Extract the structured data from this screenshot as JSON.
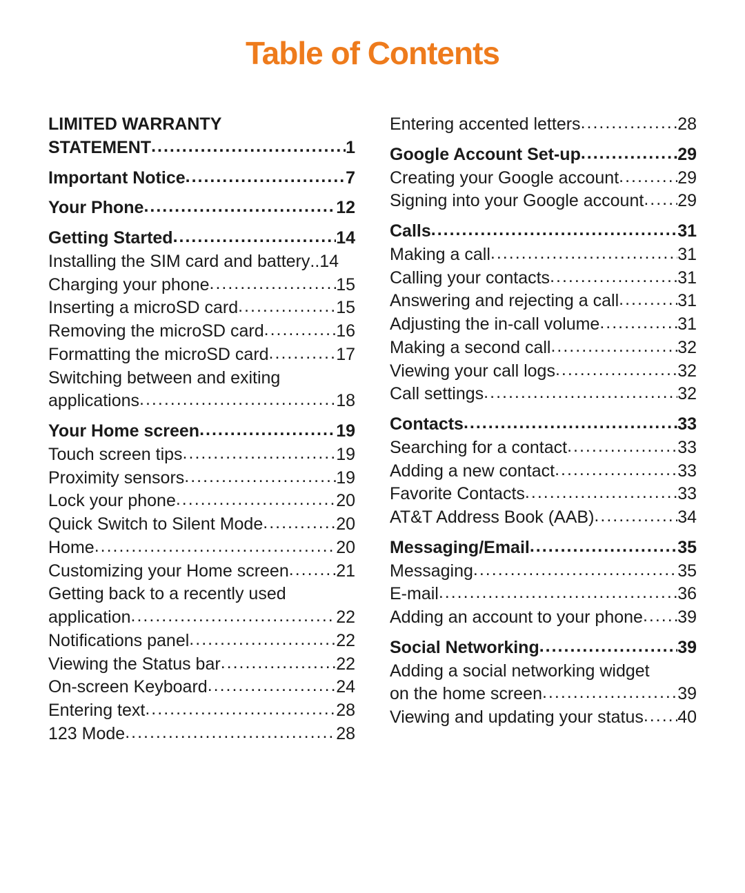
{
  "title": "Table of Contents",
  "colors": {
    "accent": "#ee7b1c",
    "text": "#1a1a1a",
    "background": "#ffffff"
  },
  "typography": {
    "title_fontsize": 46,
    "body_fontsize": 25,
    "title_weight": "bold"
  },
  "columns": [
    {
      "sections": [
        {
          "heading": {
            "lines": [
              "LIMITED WARRANTY",
              "STATEMENT"
            ],
            "page": "1"
          },
          "items": []
        },
        {
          "heading": {
            "lines": [
              "Important Notice"
            ],
            "page": "7"
          },
          "items": []
        },
        {
          "heading": {
            "lines": [
              "Your Phone"
            ],
            "page": "12"
          },
          "items": []
        },
        {
          "heading": {
            "lines": [
              "Getting Started"
            ],
            "page": "14"
          },
          "items": [
            {
              "lines": [
                "Installing the SIM card and battery"
              ],
              "page": "14",
              "no_leader": true
            },
            {
              "lines": [
                "Charging your phone"
              ],
              "page": "15"
            },
            {
              "lines": [
                "Inserting a microSD card"
              ],
              "page": "15"
            },
            {
              "lines": [
                "Removing the microSD card"
              ],
              "page": "16"
            },
            {
              "lines": [
                "Formatting the microSD card"
              ],
              "page": "17"
            },
            {
              "lines": [
                "Switching between and exiting",
                "applications"
              ],
              "page": "18"
            }
          ]
        },
        {
          "heading": {
            "lines": [
              "Your Home screen"
            ],
            "page": "19"
          },
          "items": [
            {
              "lines": [
                "Touch screen tips"
              ],
              "page": "19"
            },
            {
              "lines": [
                "Proximity sensors"
              ],
              "page": "19"
            },
            {
              "lines": [
                "Lock your phone"
              ],
              "page": "20"
            },
            {
              "lines": [
                "Quick Switch to Silent Mode"
              ],
              "page": "20"
            },
            {
              "lines": [
                "Home"
              ],
              "page": "20"
            },
            {
              "lines": [
                "Customizing your Home screen"
              ],
              "page": "21"
            },
            {
              "lines": [
                "Getting back to a recently used",
                "application"
              ],
              "page": "22"
            },
            {
              "lines": [
                "Notifications panel"
              ],
              "page": "22"
            },
            {
              "lines": [
                "Viewing the Status bar"
              ],
              "page": "22"
            },
            {
              "lines": [
                "On-screen Keyboard"
              ],
              "page": "24"
            },
            {
              "lines": [
                "Entering text"
              ],
              "page": "28"
            },
            {
              "lines": [
                "123 Mode"
              ],
              "page": "28"
            }
          ]
        }
      ]
    },
    {
      "sections": [
        {
          "heading": null,
          "items": [
            {
              "lines": [
                "Entering accented letters"
              ],
              "page": "28"
            }
          ]
        },
        {
          "heading": {
            "lines": [
              "Google Account Set-up"
            ],
            "page": "29"
          },
          "items": [
            {
              "lines": [
                "Creating your Google account"
              ],
              "page": "29"
            },
            {
              "lines": [
                "Signing into your Google account"
              ],
              "page": "29"
            }
          ]
        },
        {
          "heading": {
            "lines": [
              "Calls"
            ],
            "page": "31"
          },
          "items": [
            {
              "lines": [
                "Making a call"
              ],
              "page": "31"
            },
            {
              "lines": [
                "Calling your contacts"
              ],
              "page": "31"
            },
            {
              "lines": [
                "Answering and rejecting a call"
              ],
              "page": "31"
            },
            {
              "lines": [
                "Adjusting the in-call volume"
              ],
              "page": "31"
            },
            {
              "lines": [
                "Making a second call"
              ],
              "page": "32"
            },
            {
              "lines": [
                "Viewing your call logs"
              ],
              "page": "32"
            },
            {
              "lines": [
                "Call settings"
              ],
              "page": "32"
            }
          ]
        },
        {
          "heading": {
            "lines": [
              "Contacts"
            ],
            "page": "33"
          },
          "items": [
            {
              "lines": [
                "Searching for a contact"
              ],
              "page": "33"
            },
            {
              "lines": [
                "Adding a new contact"
              ],
              "page": "33"
            },
            {
              "lines": [
                "Favorite Contacts"
              ],
              "page": "33"
            },
            {
              "lines": [
                "AT&T Address Book (AAB)"
              ],
              "page": "34"
            }
          ]
        },
        {
          "heading": {
            "lines": [
              "Messaging/Email"
            ],
            "page": "35"
          },
          "items": [
            {
              "lines": [
                "Messaging"
              ],
              "page": "35"
            },
            {
              "lines": [
                "E-mail"
              ],
              "page": "36"
            },
            {
              "lines": [
                "Adding an account to your phone"
              ],
              "page": "39"
            }
          ]
        },
        {
          "heading": {
            "lines": [
              "Social Networking"
            ],
            "page": "39"
          },
          "items": [
            {
              "lines": [
                "Adding a social networking widget",
                "on the home screen"
              ],
              "page": "39"
            },
            {
              "lines": [
                "Viewing and updating your status"
              ],
              "page": "40"
            }
          ]
        }
      ]
    }
  ]
}
